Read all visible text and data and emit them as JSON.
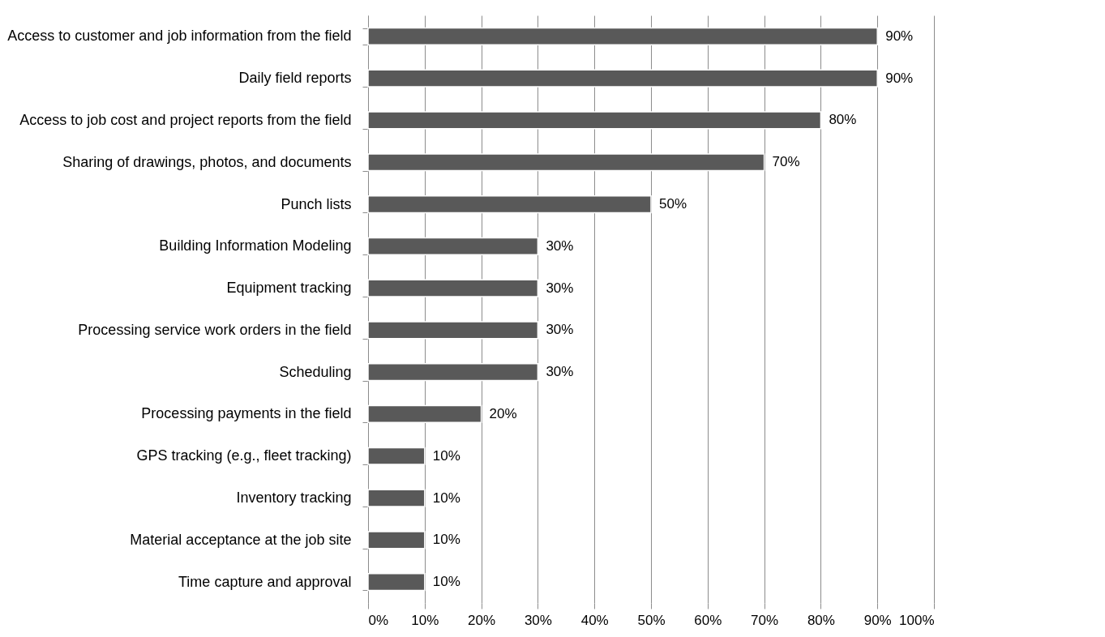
{
  "chart_data": {
    "type": "bar",
    "orientation": "horizontal",
    "categories": [
      "Access to customer and job information from the field",
      "Daily field reports",
      "Access to job cost and project reports from the field",
      "Sharing of drawings, photos, and documents",
      "Punch lists",
      "Building Information Modeling ",
      "Equipment tracking",
      "Processing service work orders in the field",
      "Scheduling",
      "Processing payments in the field",
      "GPS tracking (e.g., fleet tracking)",
      "Inventory tracking",
      "Material acceptance at the job site",
      "Time capture and approval"
    ],
    "values": [
      90,
      90,
      80,
      70,
      50,
      30,
      30,
      30,
      30,
      20,
      10,
      10,
      10,
      10
    ],
    "value_labels": [
      "90%",
      "90%",
      "80%",
      "70%",
      "50%",
      "30%",
      "30%",
      "30%",
      "30%",
      "20%",
      "10%",
      "10%",
      "10%",
      "10%"
    ],
    "color": "#595959",
    "xlim": [
      0,
      100
    ],
    "xticks": [
      {
        "value": 0,
        "label": "0%"
      },
      {
        "value": 10,
        "label": "10%"
      },
      {
        "value": 20,
        "label": "20%"
      },
      {
        "value": 30,
        "label": "30%"
      },
      {
        "value": 40,
        "label": "40%"
      },
      {
        "value": 50,
        "label": "50%"
      },
      {
        "value": 60,
        "label": "60%"
      },
      {
        "value": 70,
        "label": "70%"
      },
      {
        "value": 80,
        "label": "80%"
      },
      {
        "value": 90,
        "label": "90%"
      },
      {
        "value": 100,
        "label": "100%"
      }
    ],
    "grid": "x"
  }
}
